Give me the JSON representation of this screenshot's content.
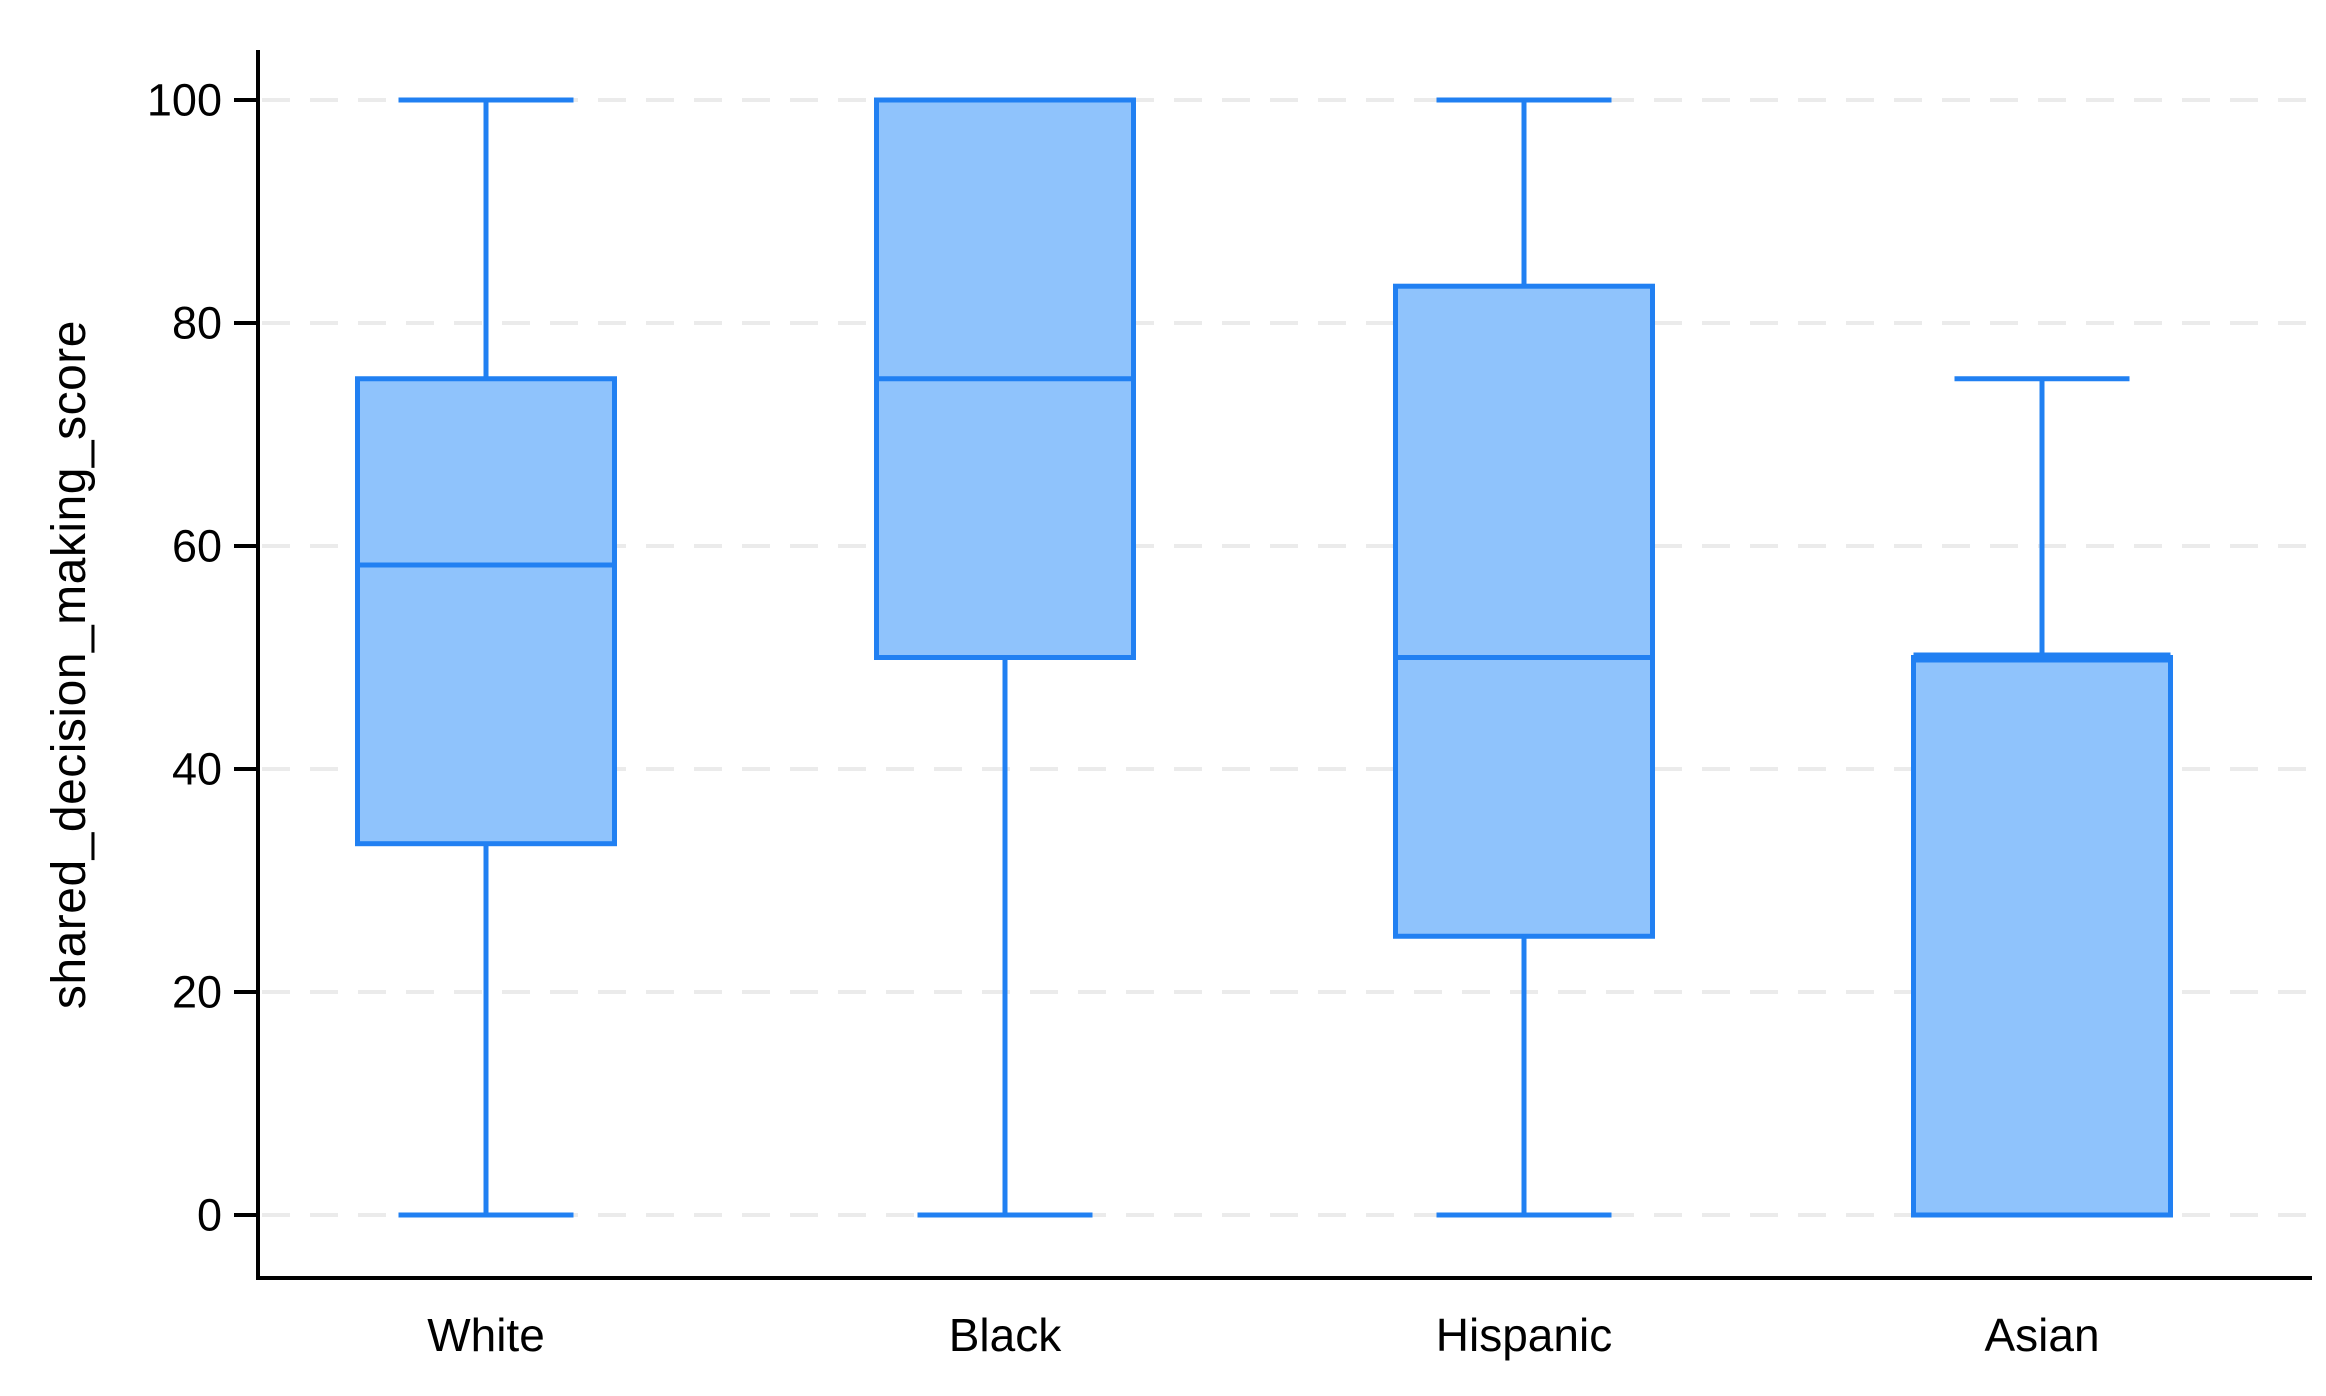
{
  "figure": {
    "kind": "boxplot-figure",
    "background": "#FFFFFF"
  },
  "chart_data": {
    "type": "box",
    "title": "",
    "xlabel": "",
    "ylabel": "shared_decision_making_score",
    "categories": [
      "White",
      "Black",
      "Hispanic",
      "Asian"
    ],
    "series": [
      {
        "category": "White",
        "whisker_low": 0,
        "q1": 33.3,
        "median": 58.3,
        "q3": 75,
        "whisker_high": 100
      },
      {
        "category": "Black",
        "whisker_low": 0,
        "q1": 50,
        "median": 75,
        "q3": 100,
        "whisker_high": 100
      },
      {
        "category": "Hispanic",
        "whisker_low": 0,
        "q1": 25,
        "median": 50,
        "q3": 83.3,
        "whisker_high": 100
      },
      {
        "category": "Asian",
        "whisker_low": 0,
        "q1": 0,
        "median": 50,
        "q3": 50,
        "whisker_high": 75
      }
    ],
    "ylim": [
      0,
      100
    ],
    "yticks": [
      0,
      20,
      40,
      60,
      80,
      100
    ],
    "grid": "horizontal-dashed",
    "legend": "none",
    "colors": {
      "box_fill": "#8FC3FC",
      "box_line": "#2180F2",
      "grid_line": "#EBEBEB",
      "axis_line": "#000000",
      "text": "#000000"
    }
  }
}
